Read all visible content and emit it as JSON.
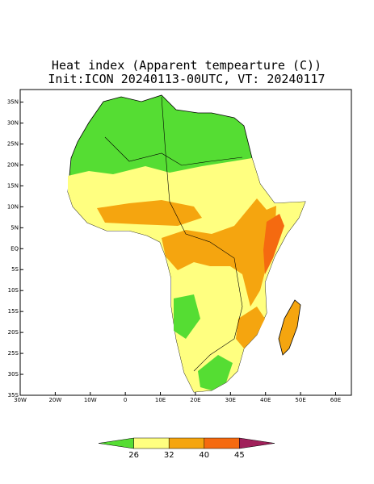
{
  "title": "Heat index (Apparent tempearture (C))",
  "subtitle": "Init:ICON 20240113-00UTC, VT: 20240117",
  "map": {
    "lon_range": [
      -30,
      64.5
    ],
    "lat_range": [
      -35,
      38
    ],
    "lon_ticks": [
      {
        "value": -30,
        "label": "30W"
      },
      {
        "value": -20,
        "label": "20W"
      },
      {
        "value": -10,
        "label": "10W"
      },
      0,
      {
        "value": 10,
        "label": "10E"
      },
      {
        "value": 20,
        "label": "20E"
      },
      {
        "value": 30,
        "label": "30E"
      },
      {
        "value": 40,
        "label": "40E"
      },
      {
        "value": 50,
        "label": "50E"
      },
      {
        "value": 60,
        "label": "60E"
      }
    ],
    "lat_ticks": [
      {
        "value": 35,
        "label": "35N"
      },
      {
        "value": 30,
        "label": "30N"
      },
      {
        "value": 25,
        "label": "25N"
      },
      {
        "value": 20,
        "label": "20N"
      },
      {
        "value": 15,
        "label": "15N"
      },
      {
        "value": 10,
        "label": "10N"
      },
      {
        "value": 5,
        "label": "5N"
      },
      {
        "value": 0,
        "label": "EQ"
      },
      {
        "value": -5,
        "label": "5S"
      },
      {
        "value": -10,
        "label": "10S"
      },
      {
        "value": -15,
        "label": "15S"
      },
      {
        "value": -20,
        "label": "20S"
      },
      {
        "value": -25,
        "label": "25S"
      },
      {
        "value": -30,
        "label": "30S"
      },
      {
        "value": -35,
        "label": "35S"
      }
    ]
  },
  "colorbar": {
    "levels": [
      26,
      32,
      40,
      45
    ],
    "colors": [
      "#55dd33",
      "#ffff80",
      "#f5a50f",
      "#f56a10",
      "#a0205a"
    ]
  }
}
